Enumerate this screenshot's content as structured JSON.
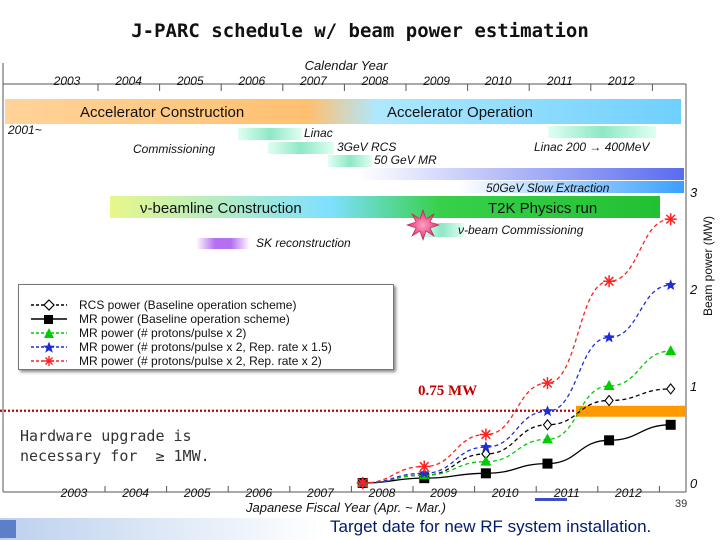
{
  "title": "J-PARC schedule w/ beam power estimation",
  "axes": {
    "top_label": "Calendar Year",
    "top_years": [
      "2003",
      "2004",
      "2005",
      "2006",
      "2007",
      "2008",
      "2009",
      "2010",
      "2011",
      "2012"
    ],
    "bottom_label": "Japanese Fiscal Year (Apr. ~ Mar.)",
    "bottom_years": [
      "2003",
      "2004",
      "2005",
      "2006",
      "2007",
      "2008",
      "2009",
      "2010",
      "2011",
      "2012"
    ],
    "right_label": "Beam power (MW)",
    "right_ticks": [
      "0",
      "1",
      "2",
      "3"
    ]
  },
  "schedule": {
    "accel_construction": "Accelerator Construction",
    "accel_operation": "Accelerator Operation",
    "since": "2001~",
    "linac": "Linac",
    "commissioning": "Commissioning",
    "rcs": "3GeV RCS",
    "mr": "50 GeV MR",
    "linac_upgrade": "Linac 200 → 400MeV",
    "slow_extraction": "50GeV Slow Extraction",
    "nu_beamline": "ν-beamline Construction",
    "t2k_run": "T2K Physics run",
    "nu_commissioning": "ν-beam Commissioning",
    "sk_reconstruction": "SK reconstruction"
  },
  "chart_data": {
    "type": "line",
    "x_unit": "Japanese Fiscal Year",
    "xlim": [
      2002.8,
      2013.4
    ],
    "ylim": [
      0,
      3
    ],
    "ylabel": "Beam power (MW)",
    "series": [
      {
        "name": "RCS power (Baseline operation scheme)",
        "color": "#000000",
        "dash": true,
        "marker": "diamond-open",
        "points": [
          [
            2007.8,
            0.0
          ],
          [
            2008.8,
            0.08
          ],
          [
            2009.8,
            0.3
          ],
          [
            2010.8,
            0.6
          ],
          [
            2011.8,
            0.85
          ],
          [
            2012.8,
            0.97
          ]
        ]
      },
      {
        "name": "MR  power (Baseline operation scheme)",
        "color": "#000000",
        "dash": false,
        "marker": "square",
        "points": [
          [
            2007.8,
            0.0
          ],
          [
            2008.8,
            0.05
          ],
          [
            2009.8,
            0.1
          ],
          [
            2010.8,
            0.2
          ],
          [
            2011.8,
            0.44
          ],
          [
            2012.8,
            0.6
          ]
        ]
      },
      {
        "name": "MR  power (# protons/pulse x 2)",
        "color": "#00cc00",
        "dash": true,
        "marker": "triangle",
        "points": [
          [
            2007.8,
            0.0
          ],
          [
            2008.8,
            0.08
          ],
          [
            2009.8,
            0.22
          ],
          [
            2010.8,
            0.45
          ],
          [
            2011.8,
            1.0
          ],
          [
            2012.8,
            1.36
          ]
        ]
      },
      {
        "name": "MR  power (# protons/pulse x 2, Rep. rate x 1.5)",
        "color": "#1f2dd6",
        "dash": true,
        "marker": "star",
        "points": [
          [
            2007.8,
            0.0
          ],
          [
            2008.8,
            0.1
          ],
          [
            2009.8,
            0.37
          ],
          [
            2010.8,
            0.74
          ],
          [
            2011.8,
            1.5
          ],
          [
            2012.8,
            2.04
          ]
        ]
      },
      {
        "name": "MR  power (# protons/pulse x 2, Rep. rate x 2)",
        "color": "#ff2020",
        "dash": true,
        "marker": "asterisk",
        "points": [
          [
            2007.8,
            0.0
          ],
          [
            2008.8,
            0.17
          ],
          [
            2009.8,
            0.5
          ],
          [
            2010.8,
            1.03
          ],
          [
            2011.8,
            2.08
          ],
          [
            2012.8,
            2.72
          ]
        ]
      }
    ],
    "threshold": {
      "value": 0.75,
      "label": "0.75 MW",
      "color": "#c00000"
    }
  },
  "annotations": {
    "upgrade_note": "Hardware upgrade is\nnecessary for  ≥ 1MW.",
    "target_note": "Target date for new RF system installation.",
    "page_number": "39"
  },
  "colors": {
    "orange_band": "#ff9900",
    "target_mark": "#3b4ec8"
  }
}
